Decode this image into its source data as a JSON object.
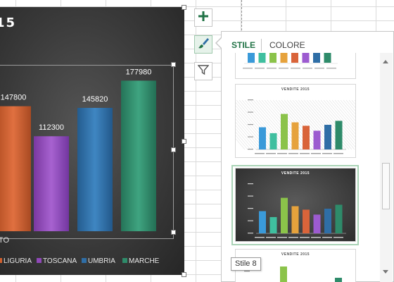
{
  "chart": {
    "title_fragment": "15",
    "legend": [
      {
        "label": "LIGURIA",
        "color": "#d05f2e"
      },
      {
        "label": "TOSCANA",
        "color": "#8f48b8"
      },
      {
        "label": "UMBRIA",
        "color": "#2f6ea6"
      },
      {
        "label": "MARCHE",
        "color": "#2e8b6a"
      }
    ],
    "axis_fragment": "TO",
    "accent_color": "#217346"
  },
  "chart_data": {
    "type": "bar",
    "categories": [
      "",
      "",
      "",
      ""
    ],
    "values": [
      147800,
      112300,
      145820,
      177980
    ],
    "data_labels": [
      "147800",
      "112300",
      "145820",
      "177980"
    ],
    "series_names": [
      "LIGURIA",
      "TOSCANA",
      "UMBRIA",
      "MARCHE"
    ]
  },
  "side_buttons": {
    "add_elements": "plus-icon",
    "styles": "brush-icon",
    "filters": "funnel-icon"
  },
  "pane": {
    "tabs": [
      {
        "label": "STILE",
        "active": true
      },
      {
        "label": "COLORE",
        "active": false
      }
    ],
    "thumbnails": [
      {
        "title": ""
      },
      {
        "title": "VENDITE 2015"
      },
      {
        "title": "VENDITE 2015"
      },
      {
        "title": "VENDITE 2015"
      }
    ],
    "thumb_colors": [
      "#3a9ad9",
      "#3fbf9f",
      "#8bc34a",
      "#e6a23c",
      "#d9643a",
      "#9c5bd0",
      "#2f6ea6",
      "#2e8b6a"
    ],
    "tooltip": "Stile 8"
  }
}
